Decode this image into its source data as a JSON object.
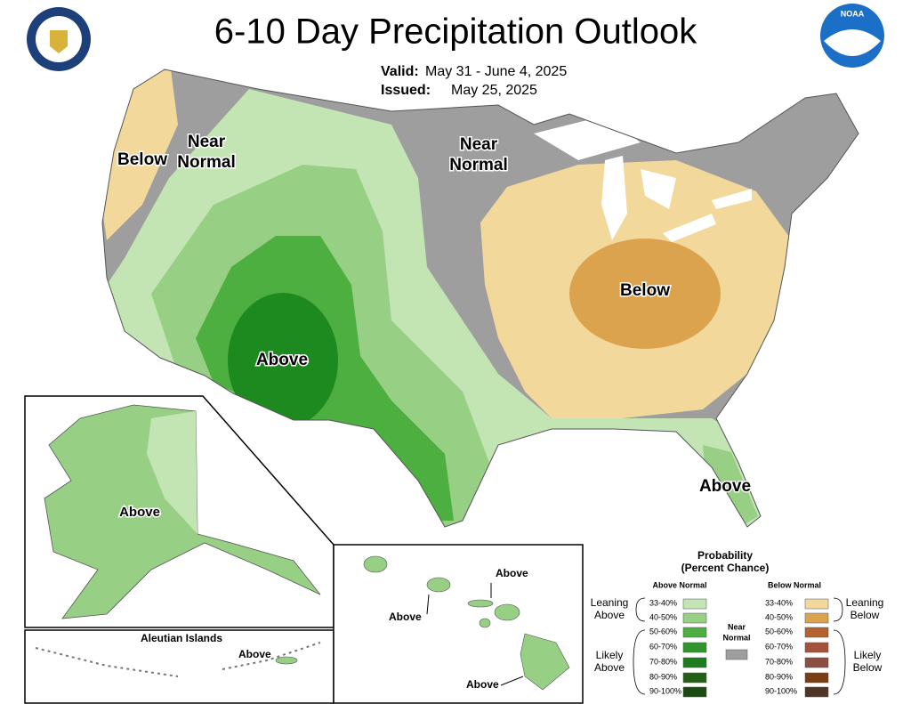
{
  "title": "6-10 Day Precipitation Outlook",
  "valid": {
    "label": "Valid:",
    "value": "May 31 - June 4, 2025"
  },
  "issued": {
    "label": "Issued:",
    "value": "May 25, 2025"
  },
  "noaa_logo": "NOAA",
  "conus_labels": [
    [
      "Below"
    ],
    [
      "Near",
      "Normal"
    ],
    [
      "Near",
      "Normal"
    ],
    [
      "Below"
    ],
    [
      "Above"
    ],
    [
      "Above"
    ]
  ],
  "alaska": {
    "label": "Above"
  },
  "aleutian": {
    "title": "Aleutian Islands",
    "label": "Above"
  },
  "hawaii": {
    "labels": [
      "Above",
      "Above",
      "Above"
    ]
  },
  "legend": {
    "title": [
      "Probability",
      "(Percent Chance)"
    ],
    "above": {
      "header": "Above Normal",
      "ranges": [
        "33-40%",
        "40-50%",
        "50-60%",
        "60-70%",
        "70-80%",
        "80-90%",
        "90-100%"
      ],
      "colors": [
        "#c2e5b3",
        "#97cf84",
        "#4caf3f",
        "#2e962a",
        "#1d7d1c",
        "#245f18",
        "#1b4a13"
      ]
    },
    "below": {
      "header": "Below Normal",
      "ranges": [
        "33-40%",
        "40-50%",
        "50-60%",
        "60-70%",
        "70-80%",
        "80-90%",
        "90-100%"
      ],
      "colors": [
        "#f3d89c",
        "#dca34e",
        "#b4622e",
        "#a5523a",
        "#8c4e43",
        "#7a3e14",
        "#4e3525"
      ]
    },
    "near": {
      "label": [
        "Near",
        "Normal"
      ],
      "color": "#9e9e9e"
    },
    "groups": {
      "leaning_above": [
        "Leaning",
        "Above"
      ],
      "likely_above": [
        "Likely",
        "Above"
      ],
      "leaning_below": [
        "Leaning",
        "Below"
      ],
      "likely_below": [
        "Likely",
        "Below"
      ]
    }
  }
}
